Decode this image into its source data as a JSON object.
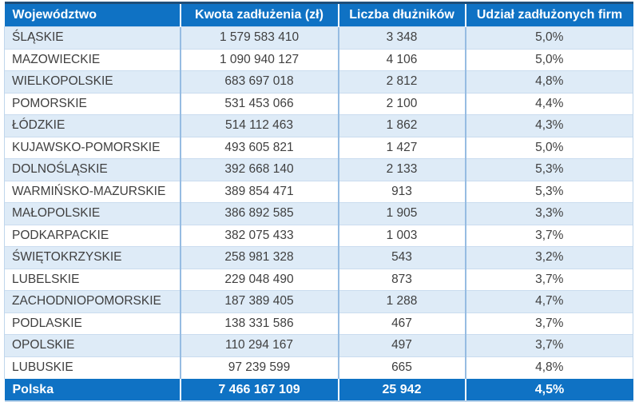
{
  "colors": {
    "header_blue": "#0F72C4",
    "dark_top": "#1F4E79",
    "row_alt": "#DEEBF7",
    "body_text": "#3F3F3F",
    "v_border": "#96BCE2",
    "h_border": "#CADCEF",
    "outer_border": "#BFD6EC"
  },
  "table": {
    "columns": [
      {
        "key": "region",
        "label": "Województwo"
      },
      {
        "key": "amount",
        "label": "Kwota zadłużenia (zł)"
      },
      {
        "key": "debtors",
        "label": "Liczba dłużników"
      },
      {
        "key": "share",
        "label": "Udział zadłużonych firm"
      }
    ],
    "rows": [
      {
        "region": "ŚLĄSKIE",
        "amount": "1 579 583 410",
        "debtors": "3 348",
        "share": "5,0%"
      },
      {
        "region": "MAZOWIECKIE",
        "amount": "1 090 940 127",
        "debtors": "4 106",
        "share": "5,0%"
      },
      {
        "region": "WIELKOPOLSKIE",
        "amount": "683 697 018",
        "debtors": "2 812",
        "share": "4,8%"
      },
      {
        "region": "POMORSKIE",
        "amount": "531 453 066",
        "debtors": "2 100",
        "share": "4,4%"
      },
      {
        "region": "ŁÓDZKIE",
        "amount": "514 112 463",
        "debtors": "1 862",
        "share": "4,3%"
      },
      {
        "region": "KUJAWSKO-POMORSKIE",
        "amount": "493 605 821",
        "debtors": "1 427",
        "share": "5,0%"
      },
      {
        "region": "DOLNOŚLĄSKIE",
        "amount": "392 668 140",
        "debtors": "2 133",
        "share": "5,3%"
      },
      {
        "region": "WARMIŃSKO-MAZURSKIE",
        "amount": "389 854 471",
        "debtors": "913",
        "share": "5,3%"
      },
      {
        "region": "MAŁOPOLSKIE",
        "amount": "386 892 585",
        "debtors": "1 905",
        "share": "3,3%"
      },
      {
        "region": "PODKARPACKIE",
        "amount": "382 075 433",
        "debtors": "1 003",
        "share": "3,7%"
      },
      {
        "region": "ŚWIĘTOKRZYSKIE",
        "amount": "258 981 328",
        "debtors": "543",
        "share": "3,2%"
      },
      {
        "region": "LUBELSKIE",
        "amount": "229 048 490",
        "debtors": "873",
        "share": "3,7%"
      },
      {
        "region": "ZACHODNIOPOMORSKIE",
        "amount": "187 389 405",
        "debtors": "1 288",
        "share": "4,7%"
      },
      {
        "region": "PODLASKIE",
        "amount": "138 331 586",
        "debtors": "467",
        "share": "3,7%"
      },
      {
        "region": "OPOLSKIE",
        "amount": "110 294 167",
        "debtors": "497",
        "share": "3,7%"
      },
      {
        "region": "LUBUSKIE",
        "amount": "97 239 599",
        "debtors": "665",
        "share": "4,8%"
      }
    ],
    "total": {
      "region": "Polska",
      "amount": "7 466 167 109",
      "debtors": "25 942",
      "share": "4,5%"
    }
  },
  "chart_data": {
    "type": "table",
    "title": "",
    "columns": [
      "Województwo",
      "Kwota zadłużenia (zł)",
      "Liczba dłużników",
      "Udział zadłużonych firm"
    ],
    "rows": [
      [
        "ŚLĄSKIE",
        "1 579 583 410",
        "3 348",
        "5,0%"
      ],
      [
        "MAZOWIECKIE",
        "1 090 940 127",
        "4 106",
        "5,0%"
      ],
      [
        "WIELKOPOLSKIE",
        "683 697 018",
        "2 812",
        "4,8%"
      ],
      [
        "POMORSKIE",
        "531 453 066",
        "2 100",
        "4,4%"
      ],
      [
        "ŁÓDZKIE",
        "514 112 463",
        "1 862",
        "4,3%"
      ],
      [
        "KUJAWSKO-POMORSKIE",
        "493 605 821",
        "1 427",
        "5,0%"
      ],
      [
        "DOLNOŚLĄSKIE",
        "392 668 140",
        "2 133",
        "5,3%"
      ],
      [
        "WARMIŃSKO-MAZURSKIE",
        "389 854 471",
        "913",
        "5,3%"
      ],
      [
        "MAŁOPOLSKIE",
        "386 892 585",
        "1 905",
        "3,3%"
      ],
      [
        "PODKARPACKIE",
        "382 075 433",
        "1 003",
        "3,7%"
      ],
      [
        "ŚWIĘTOKRZYSKIE",
        "258 981 328",
        "543",
        "3,2%"
      ],
      [
        "LUBELSKIE",
        "229 048 490",
        "873",
        "3,7%"
      ],
      [
        "ZACHODNIOPOMORSKIE",
        "187 389 405",
        "1 288",
        "4,7%"
      ],
      [
        "PODLASKIE",
        "138 331 586",
        "467",
        "3,7%"
      ],
      [
        "OPOLSKIE",
        "110 294 167",
        "497",
        "3,7%"
      ],
      [
        "LUBUSKIE",
        "97 239 599",
        "665",
        "4,8%"
      ]
    ],
    "total_row": [
      "Polska",
      "7 466 167 109",
      "25 942",
      "4,5%"
    ],
    "numeric": {
      "amount_zl": [
        1579583410,
        1090940127,
        683697018,
        531453066,
        514112463,
        493605821,
        392668140,
        389854471,
        386892585,
        382075433,
        258981328,
        229048490,
        187389405,
        138331586,
        110294167,
        97239599
      ],
      "debtors": [
        3348,
        4106,
        2812,
        2100,
        1862,
        1427,
        2133,
        913,
        1905,
        1003,
        543,
        873,
        1288,
        467,
        497,
        665
      ],
      "share_pct": [
        5.0,
        5.0,
        4.8,
        4.4,
        4.3,
        5.0,
        5.3,
        5.3,
        3.3,
        3.7,
        3.2,
        3.7,
        4.7,
        3.7,
        3.7,
        4.8
      ],
      "total_amount_zl": 7466167109,
      "total_debtors": 25942,
      "total_share_pct": 4.5
    }
  }
}
